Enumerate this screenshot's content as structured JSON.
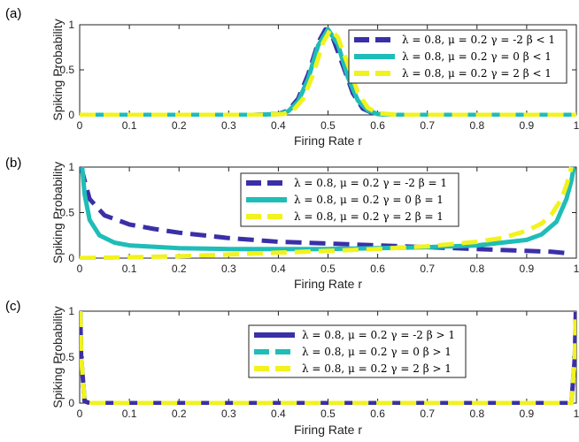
{
  "chart_data": [
    {
      "panel": "(a)",
      "type": "line",
      "xlabel": "Firing Rate r",
      "ylabel": "Spiking Probability",
      "xlim": [
        0,
        1
      ],
      "ylim": [
        0,
        1
      ],
      "xticks": [
        "0",
        "0.1",
        "0.2",
        "0.3",
        "0.4",
        "0.5",
        "0.6",
        "0.7",
        "0.8",
        "0.9",
        "1"
      ],
      "yticks": [
        "0",
        "0.5",
        "1"
      ],
      "legend_position": "top-right",
      "series": [
        {
          "name": "λ = 0.8, μ = 0.2 γ = -2 β < 1",
          "color": "#3b2fa8",
          "dash": "long-dash",
          "x": [
            0,
            0.35,
            0.4,
            0.42,
            0.44,
            0.46,
            0.48,
            0.495,
            0.51,
            0.53,
            0.55,
            0.57,
            0.59,
            0.62,
            1
          ],
          "y": [
            0,
            0,
            0.01,
            0.05,
            0.18,
            0.45,
            0.8,
            0.95,
            0.85,
            0.55,
            0.24,
            0.07,
            0.02,
            0,
            0
          ]
        },
        {
          "name": "λ = 0.8, μ = 0.2 γ = 0 β < 1",
          "color": "#1fbdb7",
          "dash": "solid",
          "x": [
            0,
            0.35,
            0.4,
            0.42,
            0.44,
            0.46,
            0.48,
            0.5,
            0.52,
            0.54,
            0.56,
            0.58,
            0.6,
            0.63,
            1
          ],
          "y": [
            0,
            0,
            0.01,
            0.04,
            0.15,
            0.4,
            0.77,
            0.95,
            0.78,
            0.42,
            0.16,
            0.05,
            0.01,
            0,
            0
          ]
        },
        {
          "name": "λ = 0.8, μ = 0.2 γ = 2 β < 1",
          "color": "#f2f21e",
          "dash": "long-dash",
          "x": [
            0,
            0.36,
            0.41,
            0.43,
            0.45,
            0.47,
            0.49,
            0.505,
            0.52,
            0.54,
            0.56,
            0.58,
            0.6,
            0.64,
            1
          ],
          "y": [
            0,
            0,
            0.01,
            0.05,
            0.18,
            0.45,
            0.8,
            0.95,
            0.86,
            0.56,
            0.25,
            0.08,
            0.02,
            0,
            0
          ]
        }
      ]
    },
    {
      "panel": "(b)",
      "type": "line",
      "xlabel": "Firing Rate r",
      "ylabel": "Spiking Probability",
      "xlim": [
        0,
        1
      ],
      "ylim": [
        0,
        1
      ],
      "xticks": [
        "0",
        "0.1",
        "0.2",
        "0.3",
        "0.4",
        "0.5",
        "0.6",
        "0.7",
        "0.8",
        "0.9",
        "1"
      ],
      "yticks": [
        "0",
        "0.5",
        "1"
      ],
      "legend_position": "top-right",
      "series": [
        {
          "name": "λ = 0.8, μ = 0.2 γ = -2 β = 1",
          "color": "#3b2fa8",
          "dash": "long-dash",
          "x": [
            0.003,
            0.01,
            0.02,
            0.05,
            0.1,
            0.15,
            0.2,
            0.3,
            0.4,
            0.5,
            0.6,
            0.7,
            0.8,
            0.9,
            0.95,
            0.99
          ],
          "y": [
            1.0,
            0.85,
            0.65,
            0.47,
            0.37,
            0.32,
            0.28,
            0.22,
            0.18,
            0.16,
            0.14,
            0.12,
            0.1,
            0.08,
            0.07,
            0.05
          ]
        },
        {
          "name": "λ = 0.8, μ = 0.2 γ = 0 β = 1",
          "color": "#1fbdb7",
          "dash": "solid",
          "x": [
            0.005,
            0.01,
            0.02,
            0.04,
            0.07,
            0.1,
            0.2,
            0.3,
            0.4,
            0.5,
            0.6,
            0.7,
            0.8,
            0.9,
            0.93,
            0.96,
            0.98,
            0.99,
            0.995
          ],
          "y": [
            1.0,
            0.7,
            0.42,
            0.25,
            0.17,
            0.14,
            0.11,
            0.1,
            0.1,
            0.1,
            0.11,
            0.12,
            0.14,
            0.2,
            0.26,
            0.4,
            0.65,
            0.85,
            1.0
          ]
        },
        {
          "name": "λ = 0.8, μ = 0.2 γ = 2 β = 1",
          "color": "#f2f21e",
          "dash": "long-dash",
          "x": [
            0,
            0.1,
            0.2,
            0.3,
            0.4,
            0.5,
            0.6,
            0.7,
            0.8,
            0.85,
            0.9,
            0.93,
            0.95,
            0.97,
            0.98,
            0.99
          ],
          "y": [
            0,
            0.01,
            0.02,
            0.04,
            0.06,
            0.08,
            0.1,
            0.13,
            0.18,
            0.22,
            0.3,
            0.38,
            0.48,
            0.65,
            0.8,
            1.0
          ]
        }
      ]
    },
    {
      "panel": "(c)",
      "type": "line",
      "xlabel": "Firing Rate r",
      "ylabel": "Spiking Probability",
      "xlim": [
        0,
        1
      ],
      "ylim": [
        0,
        1
      ],
      "xticks": [
        "0",
        "0.1",
        "0.2",
        "0.3",
        "0.4",
        "0.5",
        "0.6",
        "0.7",
        "0.8",
        "0.9",
        "1"
      ],
      "yticks": [
        "0",
        "0.5",
        "1"
      ],
      "legend_position": "top-right",
      "series": [
        {
          "name": "λ = 0.8, μ = 0.2 γ = -2 β > 1",
          "color": "#3b2fa8",
          "dash": "solid",
          "x": [
            0.001,
            0.003,
            0.01,
            0.02,
            0.99,
            0.997,
            0.999
          ],
          "y": [
            1,
            0.5,
            0.02,
            0,
            0,
            0.5,
            1
          ]
        },
        {
          "name": "λ = 0.8, μ = 0.2 γ = 0 β > 1",
          "color": "#1fbdb7",
          "dash": "long-dash",
          "x": [
            0.001,
            0.003,
            0.01,
            0.02,
            0.99,
            0.997,
            0.999
          ],
          "y": [
            1,
            0.5,
            0.02,
            0,
            0,
            0.5,
            1
          ]
        },
        {
          "name": "λ = 0.8, μ = 0.2 γ = 2 β > 1",
          "color": "#f2f21e",
          "dash": "long-dash",
          "x": [
            0.001,
            0.003,
            0.01,
            0.02,
            0.99,
            0.997,
            0.999
          ],
          "y": [
            1,
            0.5,
            0.02,
            0,
            0,
            0.5,
            1
          ]
        }
      ]
    }
  ]
}
